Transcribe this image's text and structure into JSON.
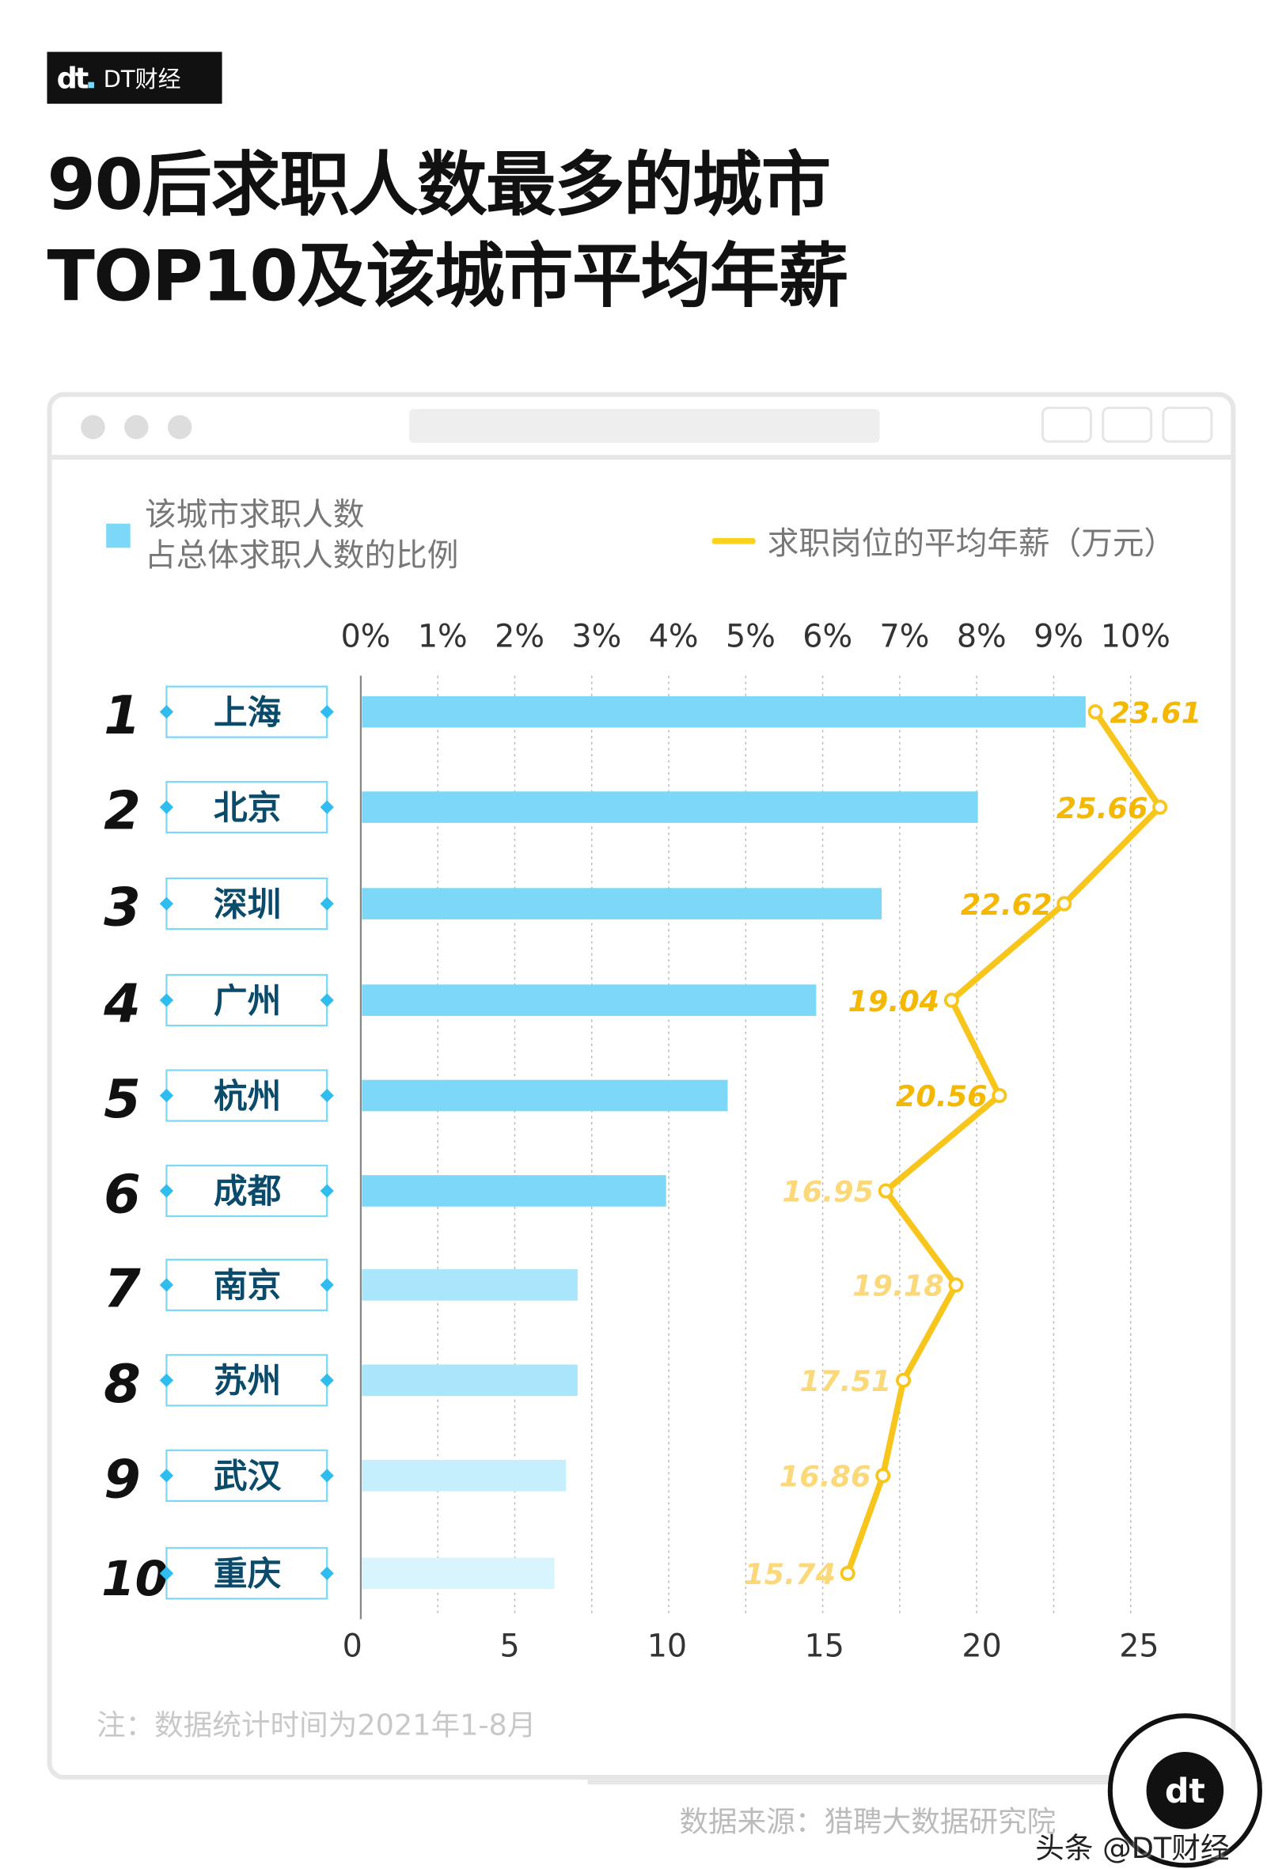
{
  "brand": {
    "logo_text": "DT财经",
    "mark": "dt"
  },
  "title": {
    "line1": "90后求职人数最多的城市",
    "line2": "TOP10及该城市平均年薪"
  },
  "legend": {
    "bar_line1": "该城市求职人数",
    "bar_line2": "占总体求职人数的比例",
    "line": "求职岗位的平均年薪（万元）"
  },
  "colors": {
    "bar": "#7dd8f8",
    "line": "#f8c51c",
    "label_dark": "#f5b800",
    "label_light": "#fbd97a"
  },
  "chart_data": {
    "type": "bar+line",
    "categories": [
      "上海",
      "北京",
      "深圳",
      "广州",
      "杭州",
      "成都",
      "南京",
      "苏州",
      "武汉",
      "重庆"
    ],
    "ranks": [
      "1",
      "2",
      "3",
      "4",
      "5",
      "6",
      "7",
      "8",
      "9",
      "10"
    ],
    "series": [
      {
        "name": "该城市求职人数占总体求职人数的比例",
        "type": "bar",
        "unit": "%",
        "values": [
          9.4,
          8.0,
          6.75,
          5.9,
          4.75,
          3.95,
          2.8,
          2.8,
          2.65,
          2.5
        ]
      },
      {
        "name": "求职岗位的平均年薪（万元）",
        "type": "line",
        "values": [
          23.61,
          25.66,
          22.62,
          19.04,
          20.56,
          16.95,
          19.18,
          17.51,
          16.86,
          15.74
        ],
        "labels": [
          "23.61",
          "25.66",
          "22.62",
          "19.04",
          "20.56",
          "16.95",
          "19.18",
          "17.51",
          "16.86",
          "15.74"
        ]
      }
    ],
    "top_axis": {
      "ticks": [
        "0%",
        "1%",
        "2%",
        "3%",
        "4%",
        "5%",
        "6%",
        "7%",
        "8%",
        "9%",
        "10%"
      ],
      "range": [
        0,
        10
      ]
    },
    "bottom_axis": {
      "ticks": [
        "0",
        "5",
        "10",
        "15",
        "20",
        "25"
      ],
      "range": [
        0,
        25
      ]
    },
    "grid": true
  },
  "footnote": "注：数据统计时间为2021年1-8月",
  "source": "数据来源：猎聘大数据研究院",
  "credit": "头条 @DT财经"
}
